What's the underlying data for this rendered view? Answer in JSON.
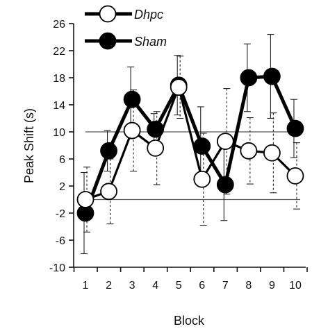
{
  "chart_data": {
    "type": "line",
    "title": "",
    "xlabel": "Block",
    "ylabel": "Peak Shift (s)",
    "categories": [
      "1",
      "2",
      "3",
      "4",
      "5",
      "6",
      "7",
      "8",
      "9",
      "10"
    ],
    "ylim": [
      -10,
      26
    ],
    "yticks": [
      "26",
      "22",
      "18",
      "14",
      "10",
      "6",
      "2",
      "-2",
      "-6",
      "-10"
    ],
    "reference_lines": [
      10,
      0
    ],
    "grid": false,
    "legend_position": "top-left",
    "series": [
      {
        "name": "Dhpc",
        "marker": "open-circle",
        "line_style": "solid",
        "errorbar_style": "dotted",
        "color": "#000000",
        "fill": "#ffffff",
        "values": [
          0,
          1.2,
          10.2,
          7.6,
          16.6,
          3.0,
          8.6,
          7.2,
          6.9,
          3.5
        ],
        "errors": [
          4.8,
          4.8,
          6.0,
          5.4,
          4.6,
          6.8,
          7.8,
          4.9,
          5.9,
          4.9
        ]
      },
      {
        "name": "Sham",
        "marker": "filled-circle",
        "line_style": "solid",
        "errorbar_style": "solid",
        "color": "#000000",
        "fill": "#000000",
        "values": [
          -2.0,
          7.2,
          14.8,
          10.4,
          16.9,
          7.9,
          2.2,
          18.0,
          18.2,
          10.5
        ],
        "errors": [
          6.0,
          3.0,
          4.8,
          2.3,
          4.4,
          5.8,
          5.3,
          5.0,
          6.2,
          4.3
        ]
      }
    ]
  }
}
